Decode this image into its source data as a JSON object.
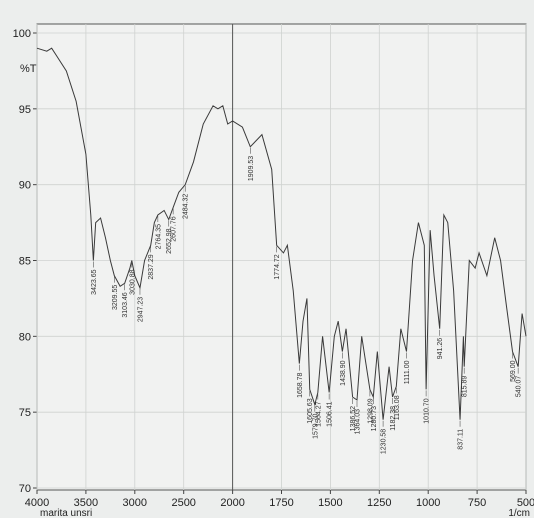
{
  "chart_data": {
    "type": "line",
    "y_label": "%T",
    "x_unit": "1/cm",
    "footer": "marita unsri",
    "color": "#3a3a3a",
    "grid": true,
    "xscale_break": 2000,
    "reverse_x": true,
    "xlim": [
      4000,
      500
    ],
    "ylim": [
      70,
      100
    ],
    "xticks": [
      4000,
      3500,
      3000,
      2500,
      2000,
      1750,
      1500,
      1250,
      1000,
      750,
      500
    ],
    "yticks": [
      70,
      75,
      80,
      85,
      90,
      95,
      100
    ],
    "x": [
      4000,
      3900,
      3850,
      3800,
      3700,
      3600,
      3500,
      3450,
      3423.65,
      3400,
      3350,
      3300,
      3250,
      3209.55,
      3150,
      3103.46,
      3050,
      3030.88,
      3000,
      2947.23,
      2900,
      2837.29,
      2800,
      2764.35,
      2700,
      2652.98,
      2607.76,
      2550,
      2484.32,
      2400,
      2300,
      2200,
      2150,
      2100,
      2050,
      2000,
      1950,
      1909.53,
      1850,
      1800,
      1774.72,
      1740,
      1720,
      1690,
      1658.78,
      1640,
      1620,
      1605.63,
      1579.7,
      1564.27,
      1540,
      1506.41,
      1480,
      1460,
      1438.9,
      1420,
      1386.52,
      1364.03,
      1340,
      1298.09,
      1280.73,
      1260,
      1230.58,
      1200,
      1182.38,
      1163.08,
      1140,
      1111,
      1080,
      1050,
      1020,
      1010.7,
      990,
      970,
      941.26,
      920,
      900,
      870,
      837.11,
      820,
      815.89,
      790,
      760,
      740,
      700,
      660,
      630,
      600,
      569,
      540.07,
      520,
      500
    ],
    "values": [
      99.0,
      98.8,
      99.0,
      98.5,
      97.5,
      95.5,
      92,
      88,
      85,
      87.5,
      87.8,
      86.5,
      85,
      84,
      83.3,
      83.5,
      84.5,
      85,
      84,
      83.2,
      85,
      86,
      87.5,
      88,
      88.3,
      87.7,
      88.5,
      89.5,
      90,
      91.5,
      94,
      95.2,
      95,
      95.2,
      94,
      94.2,
      93.8,
      92.5,
      93.3,
      91,
      86,
      85.5,
      86,
      83,
      78.2,
      81,
      82.5,
      76.5,
      75.5,
      76.3,
      80,
      76.3,
      80,
      81,
      79,
      80.5,
      76,
      75.8,
      80,
      76.5,
      76,
      79,
      74.5,
      78,
      76,
      76.7,
      80.5,
      79,
      85,
      87.5,
      86,
      76.5,
      87,
      84,
      80.5,
      88,
      87.5,
      83,
      74.5,
      80,
      78,
      85,
      84.5,
      85.5,
      84,
      86.5,
      85,
      82,
      79,
      78,
      81.5,
      80
    ],
    "peaks": [
      {
        "x": 3423.65,
        "label": "3423.65"
      },
      {
        "x": 3209.55,
        "label": "3209.55"
      },
      {
        "x": 3103.46,
        "label": "3103.46"
      },
      {
        "x": 3030.88,
        "label": "3030.88"
      },
      {
        "x": 2947.23,
        "label": "2947.23"
      },
      {
        "x": 2837.29,
        "label": "2837.29"
      },
      {
        "x": 2764.35,
        "label": "2764.35"
      },
      {
        "x": 2652.98,
        "label": "2652.98"
      },
      {
        "x": 2607.76,
        "label": "2607.76"
      },
      {
        "x": 2484.32,
        "label": "2484.32"
      },
      {
        "x": 1909.53,
        "label": "1909.53"
      },
      {
        "x": 1774.72,
        "label": "1774.72"
      },
      {
        "x": 1658.78,
        "label": "1658.78"
      },
      {
        "x": 1605.63,
        "label": "1605.63"
      },
      {
        "x": 1579.7,
        "label": "1579.70"
      },
      {
        "x": 1564.27,
        "label": "1564.27"
      },
      {
        "x": 1506.41,
        "label": "1506.41"
      },
      {
        "x": 1438.9,
        "label": "1438.90"
      },
      {
        "x": 1386.52,
        "label": "1386.52"
      },
      {
        "x": 1364.03,
        "label": "1364.03"
      },
      {
        "x": 1298.09,
        "label": "1298.09"
      },
      {
        "x": 1280.73,
        "label": "1280.73"
      },
      {
        "x": 1230.58,
        "label": "1230.58"
      },
      {
        "x": 1182.38,
        "label": "1182.38"
      },
      {
        "x": 1163.08,
        "label": "1163.08"
      },
      {
        "x": 1111,
        "label": "1111.00"
      },
      {
        "x": 1010.7,
        "label": "1010.70"
      },
      {
        "x": 941.26,
        "label": "941.26"
      },
      {
        "x": 837.11,
        "label": "837.11"
      },
      {
        "x": 815.89,
        "label": "815.89"
      },
      {
        "x": 569,
        "label": "569.00"
      },
      {
        "x": 540.07,
        "label": "540.07"
      }
    ]
  }
}
